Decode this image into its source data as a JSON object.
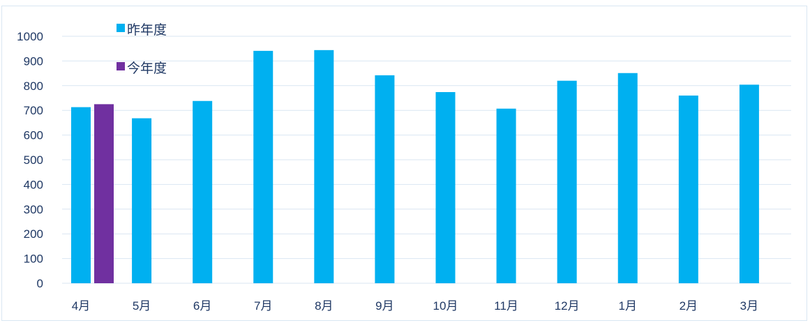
{
  "chart_data": {
    "type": "bar",
    "categories": [
      "4月",
      "5月",
      "6月",
      "7月",
      "8月",
      "9月",
      "10月",
      "11月",
      "12月",
      "1月",
      "2月",
      "3月"
    ],
    "series": [
      {
        "name": "昨年度",
        "color": "#00b0f0",
        "values": [
          713,
          668,
          738,
          941,
          944,
          842,
          774,
          707,
          820,
          851,
          760,
          804
        ]
      },
      {
        "name": "今年度",
        "color": "#7030a0",
        "values": [
          725,
          null,
          null,
          null,
          null,
          null,
          null,
          null,
          null,
          null,
          null,
          null
        ]
      }
    ],
    "yticks": [
      "0",
      "100",
      "200",
      "300",
      "400",
      "500",
      "600",
      "700",
      "800",
      "900",
      "1000"
    ],
    "ylim": [
      0,
      1000
    ],
    "grid": true,
    "legend": "top-left",
    "title": "",
    "xlabel": "",
    "ylabel": ""
  }
}
